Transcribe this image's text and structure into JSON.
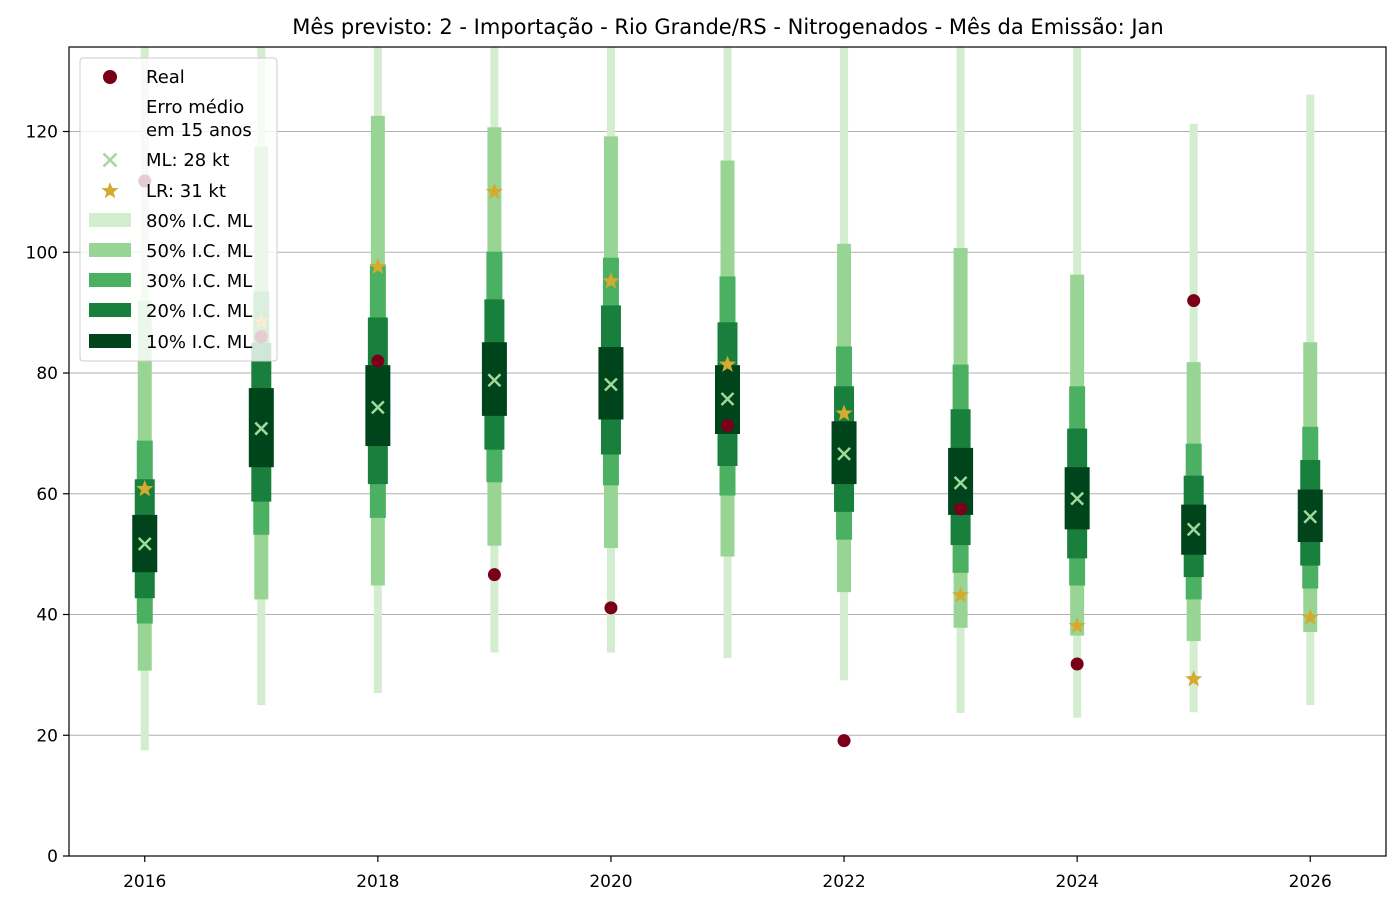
{
  "chart_data": {
    "type": "boxplot-interval",
    "title": "Mês previsto: 2 - Importação - Rio Grande/RS - Nitrogenados - Mês da Emissão: Jan",
    "xlabel": "",
    "ylabel": "",
    "xlim": [
      2015.35,
      2026.65
    ],
    "ylim": [
      0,
      134
    ],
    "grid": "horizontal",
    "legend_placement": "top-left",
    "x_ticks": [
      "2016",
      "2018",
      "2020",
      "2022",
      "2024",
      "2026"
    ],
    "y_ticks": [
      "0",
      "20",
      "40",
      "60",
      "80",
      "100",
      "120"
    ],
    "years": [
      2016,
      2017,
      2018,
      2019,
      2020,
      2021,
      2022,
      2023,
      2024,
      2025,
      2026
    ],
    "real": [
      111.8,
      86,
      82,
      46.6,
      41.1,
      71.3,
      19.1,
      57.5,
      31.8,
      92,
      null
    ],
    "ml": [
      51.7,
      70.8,
      74.3,
      78.8,
      78.1,
      75.7,
      66.6,
      61.8,
      59.2,
      54.1,
      56.2
    ],
    "lr": [
      60.8,
      88.5,
      97.6,
      110,
      95.2,
      81.4,
      73.3,
      43.2,
      38.1,
      29.3,
      39.5
    ],
    "ci80": [
      [
        17.5,
        134
      ],
      [
        25,
        134
      ],
      [
        27,
        134
      ],
      [
        33.7,
        134
      ],
      [
        33.7,
        134
      ],
      [
        32.8,
        134
      ],
      [
        29.1,
        134
      ],
      [
        23.7,
        134
      ],
      [
        22.9,
        134
      ],
      [
        23.8,
        121.3
      ],
      [
        25,
        126.1
      ]
    ],
    "ci50": [
      [
        30.7,
        92
      ],
      [
        42.5,
        117.5
      ],
      [
        44.8,
        122.6
      ],
      [
        51.4,
        120.7
      ],
      [
        51,
        119.2
      ],
      [
        49.6,
        115.2
      ],
      [
        43.7,
        101.4
      ],
      [
        37.8,
        100.7
      ],
      [
        36.5,
        96.3
      ],
      [
        35.6,
        81.8
      ],
      [
        37.1,
        85.1
      ]
    ],
    "ci30": [
      [
        38.5,
        68.8
      ],
      [
        53.2,
        93.5
      ],
      [
        56,
        97.8
      ],
      [
        61.9,
        100.1
      ],
      [
        61.4,
        99.1
      ],
      [
        59.7,
        96
      ],
      [
        52.4,
        84.4
      ],
      [
        46.9,
        81.4
      ],
      [
        44.8,
        77.8
      ],
      [
        42.5,
        68.3
      ],
      [
        44.3,
        71.1
      ]
    ],
    "ci20": [
      [
        42.7,
        62.4
      ],
      [
        58.7,
        85
      ],
      [
        61.6,
        89.2
      ],
      [
        67.3,
        92.2
      ],
      [
        66.5,
        91.2
      ],
      [
        64.6,
        88.4
      ],
      [
        57,
        77.8
      ],
      [
        51.5,
        74
      ],
      [
        49.3,
        70.8
      ],
      [
        46.2,
        63
      ],
      [
        48.1,
        65.6
      ]
    ],
    "ci10": [
      [
        47,
        56.5
      ],
      [
        64.4,
        77.5
      ],
      [
        67.9,
        81.3
      ],
      [
        72.9,
        85.1
      ],
      [
        72.3,
        84.3
      ],
      [
        69.9,
        81.3
      ],
      [
        61.6,
        72
      ],
      [
        56.5,
        67.6
      ],
      [
        54.1,
        64.4
      ],
      [
        49.9,
        58.2
      ],
      [
        52,
        60.7
      ]
    ],
    "legend": {
      "real": "Real",
      "erro_line1": "Erro médio",
      "erro_line2": "em 15 anos",
      "ml": "ML: 28 kt",
      "lr": "LR: 31 kt",
      "ci80": "80% I.C. ML",
      "ci50": "50% I.C. ML",
      "ci30": "30% I.C. ML",
      "ci20": "20% I.C. ML",
      "ci10": "10% I.C. ML"
    },
    "colors": {
      "real": "#7a0019",
      "ml": "#a1d99b",
      "lr": "#d4aa2f",
      "ci80": "#d3eece",
      "ci50": "#98d594",
      "ci30": "#4bb062",
      "ci20": "#18803c",
      "ci10": "#00441b",
      "grid": "#b0b0b0"
    }
  }
}
